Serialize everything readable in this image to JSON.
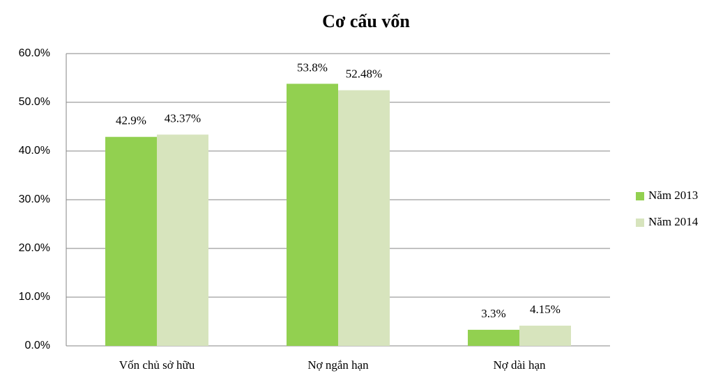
{
  "chart_data": {
    "type": "bar",
    "title": "Cơ cấu vốn",
    "categories": [
      "Vốn chủ sở hữu",
      "Nợ ngắn hạn",
      "Nợ dài hạn"
    ],
    "series": [
      {
        "name": "Năm 2013",
        "color": "#92d050",
        "values": [
          42.9,
          53.8,
          3.3
        ],
        "value_labels": [
          "42.9%",
          "53.8%",
          "3.3%"
        ]
      },
      {
        "name": "Năm 2014",
        "color": "#d7e4bd",
        "values": [
          43.37,
          52.48,
          4.15
        ],
        "value_labels": [
          "43.37%",
          "52.48%",
          "4.15%"
        ]
      }
    ],
    "ylim": [
      0,
      60
    ],
    "yticks": [
      {
        "value": 0,
        "label": "0.0%"
      },
      {
        "value": 10,
        "label": "10.0%"
      },
      {
        "value": 20,
        "label": "20.0%"
      },
      {
        "value": 30,
        "label": "30.0%"
      },
      {
        "value": 40,
        "label": "40.0%"
      },
      {
        "value": 50,
        "label": "50.0%"
      },
      {
        "value": 60,
        "label": "60.0%"
      }
    ],
    "grid": true,
    "legend": "right"
  }
}
